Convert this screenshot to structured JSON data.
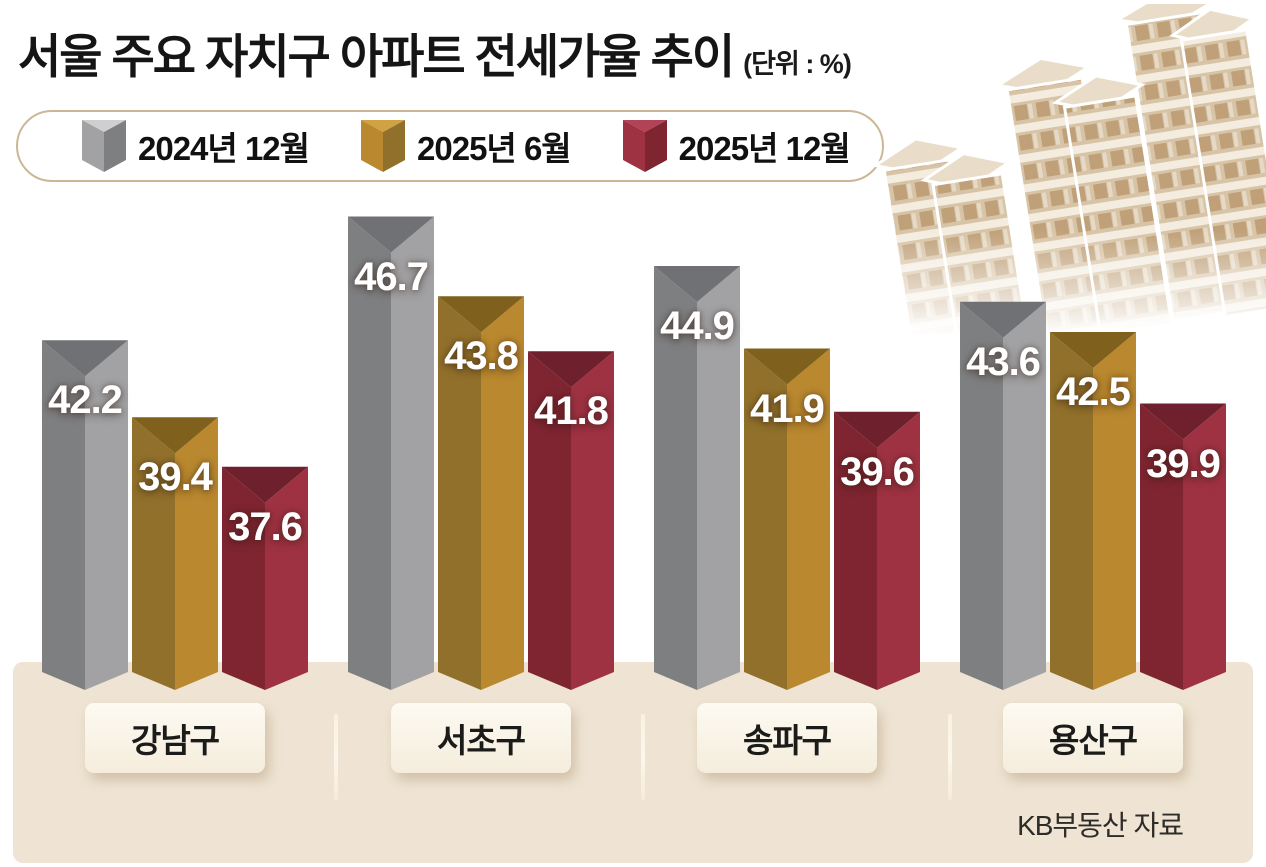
{
  "title": {
    "main": "서울 주요 자치구 아파트 전세가율 추이",
    "unit": "(단위 : %)"
  },
  "source": "KB부동산 자료",
  "colors": {
    "background": "#ffffff",
    "ground": "#efe4d3",
    "legend_border": "#cbb795",
    "title_text": "#151515",
    "category_box_bg": "#f9f3e6",
    "value_text": "#ffffff",
    "building_tint": "#d7c3a5"
  },
  "chart_data": {
    "type": "bar",
    "title": "서울 주요 자치구 아파트 전세가율 추이",
    "unit": "%",
    "categories": [
      "강남구",
      "서초구",
      "송파구",
      "용산구"
    ],
    "series": [
      {
        "name": "2024년 12월",
        "values": [
          42.2,
          46.7,
          44.9,
          43.6
        ],
        "color_dark": "#7e7f81",
        "color_light": "#a2a2a4",
        "color_roof": "#707174",
        "marker_top": "#cfcfd1"
      },
      {
        "name": "2025년 6월",
        "values": [
          39.4,
          43.8,
          41.9,
          42.5
        ],
        "color_dark": "#91702b",
        "color_light": "#b9882f",
        "color_roof": "#7f601d",
        "marker_top": "#cfa243"
      },
      {
        "name": "2025년 12월",
        "values": [
          37.6,
          41.8,
          39.6,
          39.9
        ],
        "color_dark": "#7e2531",
        "color_light": "#9e3242",
        "color_roof": "#6e202c",
        "marker_top": "#b24257"
      }
    ],
    "ylim": [
      30.5,
      48
    ],
    "axis_visible": false,
    "grid": false,
    "legend_position": "top",
    "source": "KB부동산 자료"
  }
}
